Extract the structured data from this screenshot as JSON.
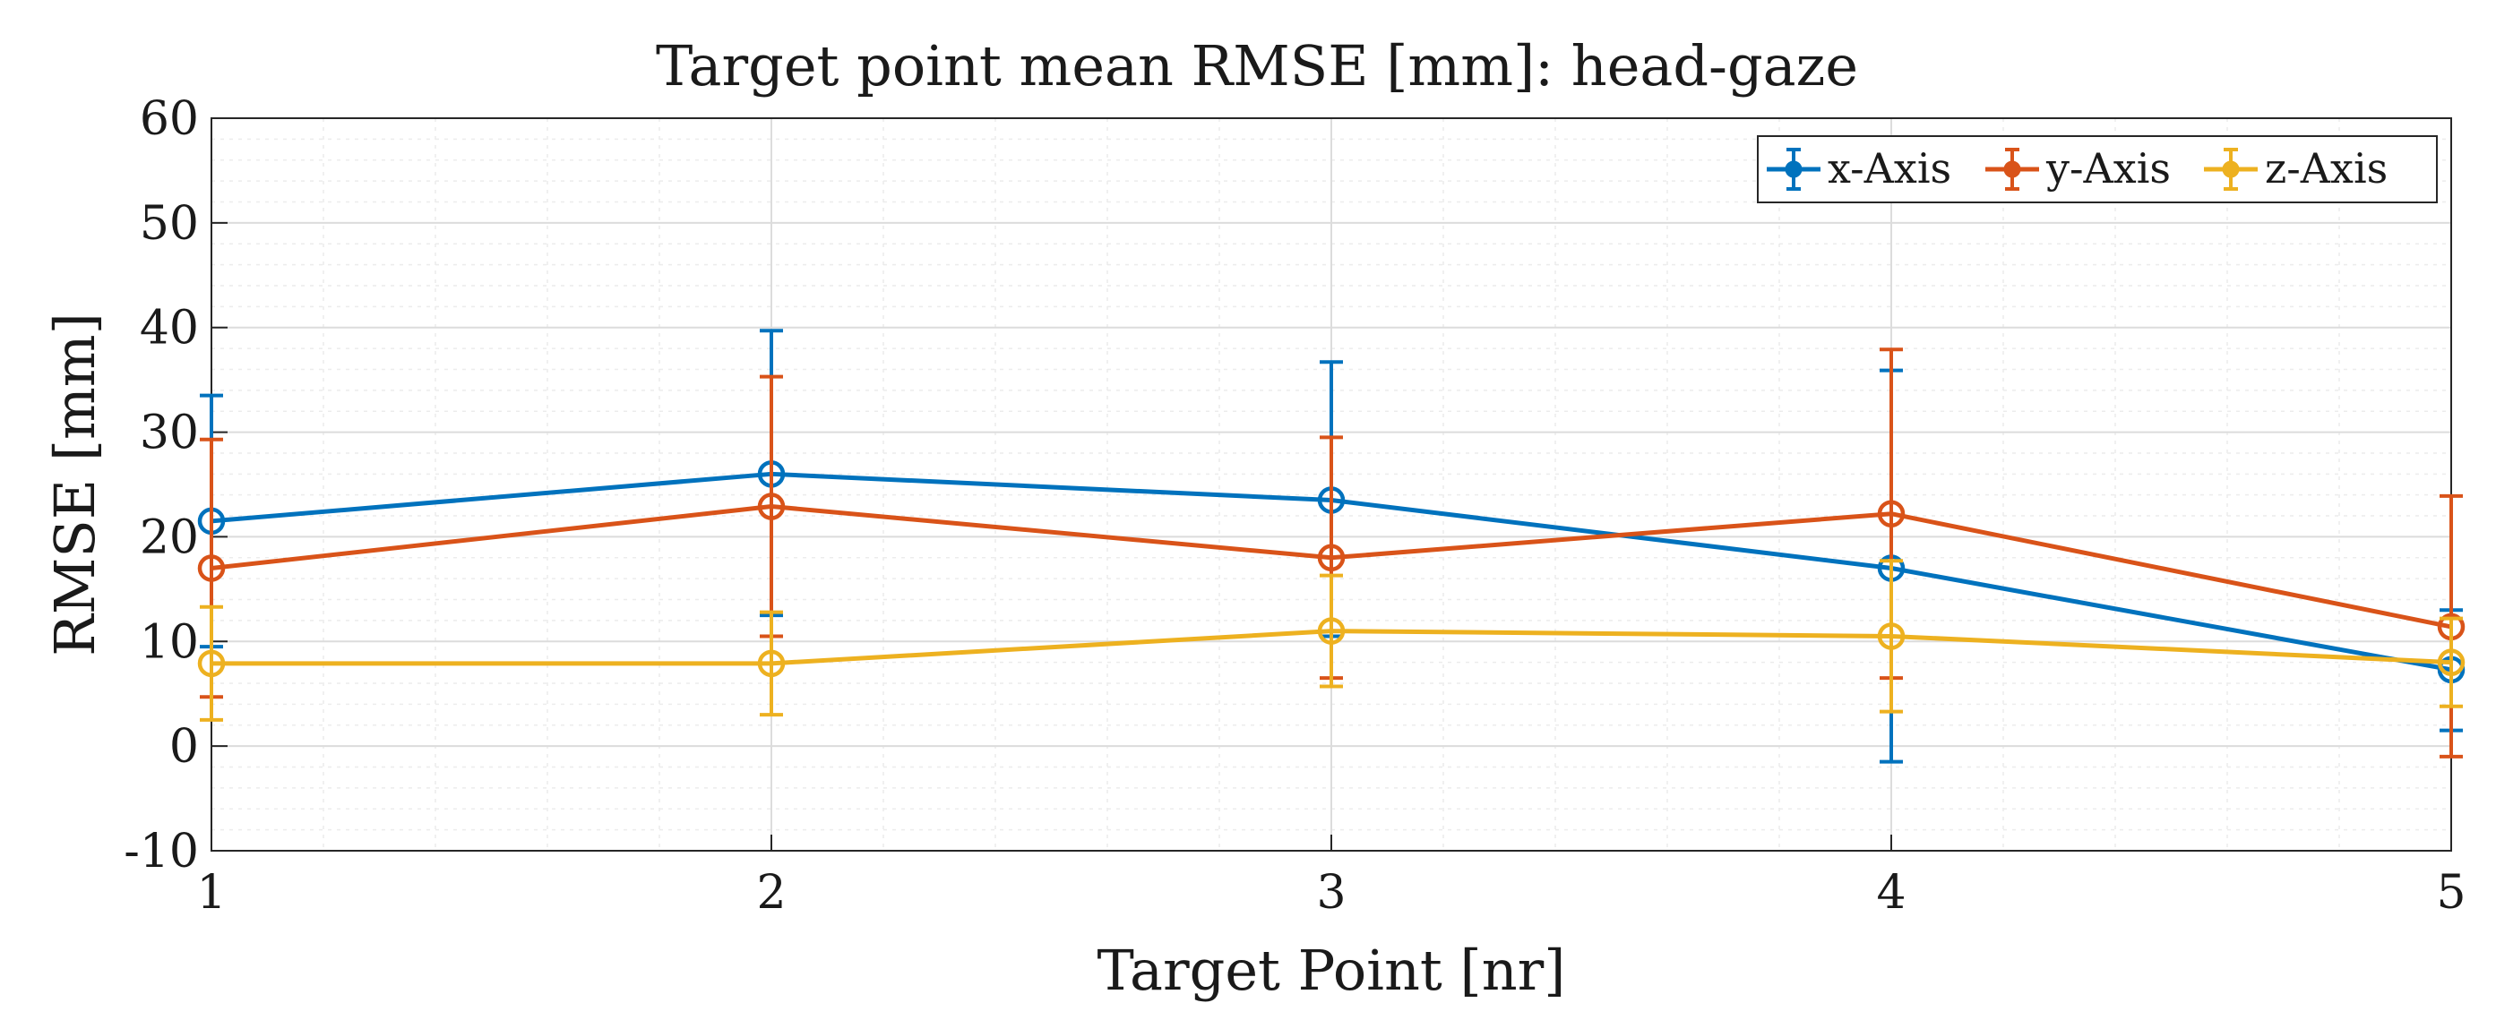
{
  "chart_data": {
    "type": "line",
    "title": "Target point mean RMSE [mm]: head-gaze",
    "xlabel": "Target Point [nr]",
    "ylabel": "RMSE [mm]",
    "x": [
      1,
      2,
      3,
      4,
      5
    ],
    "xlim": [
      1,
      5
    ],
    "ylim": [
      -10,
      60
    ],
    "xticks": [
      1,
      2,
      3,
      4,
      5
    ],
    "yticks": [
      -10,
      0,
      10,
      20,
      30,
      40,
      50,
      60
    ],
    "grid": true,
    "legend_position": "top-right",
    "series": [
      {
        "name": "x-Axis",
        "color": "#0072BD",
        "values": [
          21.5,
          26.0,
          23.5,
          17.0,
          7.3
        ],
        "err_low": [
          9.5,
          12.5,
          10.5,
          -1.5,
          1.5
        ],
        "err_high": [
          33.5,
          39.7,
          36.7,
          35.9,
          13.0
        ]
      },
      {
        "name": "y-Axis",
        "color": "#D95319",
        "values": [
          17.0,
          22.9,
          18.0,
          22.2,
          11.4
        ],
        "err_low": [
          4.7,
          10.5,
          6.5,
          6.5,
          -1.0
        ],
        "err_high": [
          29.3,
          35.3,
          29.5,
          37.9,
          23.9
        ]
      },
      {
        "name": "z-Axis",
        "color": "#EDB120",
        "values": [
          7.9,
          7.9,
          11.0,
          10.5,
          8.0
        ],
        "err_low": [
          2.5,
          3.0,
          5.7,
          3.3,
          3.8
        ],
        "err_high": [
          13.3,
          12.8,
          16.3,
          17.7,
          12.2
        ]
      }
    ]
  }
}
